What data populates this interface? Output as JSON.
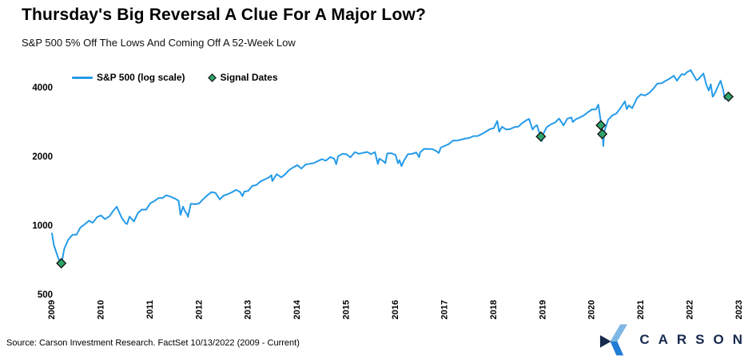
{
  "header": {
    "title": "Thursday's Big Reversal A Clue For A Major Low?",
    "subtitle": "S&P 500 5% Off The Lows And Coming Off A 52-Week Low"
  },
  "footer": {
    "source": "Source: Carson Investment Research. FactSet 10/13/2022 (2009 - Current)",
    "logo_text": "CARSON",
    "logo_colors": {
      "navy": "#17294D",
      "light_blue": "#7EB6E4",
      "mid_blue": "#1F7CD4"
    }
  },
  "chart_data": {
    "type": "line",
    "title": "Thursday's Big Reversal A Clue For A Major Low?",
    "subtitle": "S&P 500 5% Off The Lows And Coming Off A 52-Week Low",
    "grid": false,
    "legend_position": "top-left",
    "x_axis": {
      "ticks": [
        2009,
        2010,
        2011,
        2012,
        2013,
        2014,
        2015,
        2016,
        2017,
        2018,
        2019,
        2020,
        2021,
        2022,
        2023
      ],
      "label_rotation": -90
    },
    "y_axis": {
      "scale": "log",
      "ticks": [
        4000,
        2000,
        1000,
        500
      ],
      "range": [
        500,
        5200
      ]
    },
    "series": [
      {
        "name": "S&P 500 (log scale)",
        "color": "#259BE9",
        "points": [
          [
            2009.0,
            931
          ],
          [
            2009.04,
            826
          ],
          [
            2009.12,
            735
          ],
          [
            2009.19,
            677
          ],
          [
            2009.25,
            798
          ],
          [
            2009.33,
            873
          ],
          [
            2009.42,
            919
          ],
          [
            2009.5,
            919
          ],
          [
            2009.58,
            987
          ],
          [
            2009.67,
            1021
          ],
          [
            2009.75,
            1057
          ],
          [
            2009.83,
            1036
          ],
          [
            2009.92,
            1096
          ],
          [
            2010.0,
            1115
          ],
          [
            2010.08,
            1074
          ],
          [
            2010.17,
            1104
          ],
          [
            2010.25,
            1169
          ],
          [
            2010.32,
            1217
          ],
          [
            2010.42,
            1089
          ],
          [
            2010.5,
            1031
          ],
          [
            2010.53,
            1023
          ],
          [
            2010.58,
            1102
          ],
          [
            2010.67,
            1049
          ],
          [
            2010.75,
            1141
          ],
          [
            2010.83,
            1183
          ],
          [
            2010.92,
            1181
          ],
          [
            2011.0,
            1258
          ],
          [
            2011.08,
            1286
          ],
          [
            2011.17,
            1327
          ],
          [
            2011.25,
            1326
          ],
          [
            2011.33,
            1364
          ],
          [
            2011.42,
            1345
          ],
          [
            2011.5,
            1321
          ],
          [
            2011.58,
            1292
          ],
          [
            2011.62,
            1120
          ],
          [
            2011.67,
            1219
          ],
          [
            2011.71,
            1162
          ],
          [
            2011.75,
            1131
          ],
          [
            2011.77,
            1099
          ],
          [
            2011.83,
            1253
          ],
          [
            2011.92,
            1247
          ],
          [
            2012.0,
            1258
          ],
          [
            2012.08,
            1312
          ],
          [
            2012.17,
            1366
          ],
          [
            2012.25,
            1408
          ],
          [
            2012.33,
            1398
          ],
          [
            2012.42,
            1310
          ],
          [
            2012.5,
            1362
          ],
          [
            2012.58,
            1379
          ],
          [
            2012.67,
            1407
          ],
          [
            2012.75,
            1441
          ],
          [
            2012.83,
            1412
          ],
          [
            2012.88,
            1353
          ],
          [
            2012.92,
            1416
          ],
          [
            2013.0,
            1426
          ],
          [
            2013.08,
            1498
          ],
          [
            2013.17,
            1515
          ],
          [
            2013.25,
            1569
          ],
          [
            2013.33,
            1598
          ],
          [
            2013.42,
            1631
          ],
          [
            2013.47,
            1669
          ],
          [
            2013.49,
            1573
          ],
          [
            2013.58,
            1686
          ],
          [
            2013.67,
            1633
          ],
          [
            2013.75,
            1682
          ],
          [
            2013.83,
            1757
          ],
          [
            2013.92,
            1806
          ],
          [
            2014.0,
            1848
          ],
          [
            2014.08,
            1783
          ],
          [
            2014.17,
            1859
          ],
          [
            2014.25,
            1872
          ],
          [
            2014.33,
            1884
          ],
          [
            2014.42,
            1924
          ],
          [
            2014.5,
            1960
          ],
          [
            2014.58,
            1931
          ],
          [
            2014.67,
            2003
          ],
          [
            2014.75,
            1972
          ],
          [
            2014.79,
            1862
          ],
          [
            2014.83,
            2018
          ],
          [
            2014.92,
            2068
          ],
          [
            2015.0,
            2059
          ],
          [
            2015.08,
            1995
          ],
          [
            2015.17,
            2105
          ],
          [
            2015.25,
            2068
          ],
          [
            2015.33,
            2086
          ],
          [
            2015.42,
            2107
          ],
          [
            2015.5,
            2063
          ],
          [
            2015.58,
            2104
          ],
          [
            2015.64,
            1868
          ],
          [
            2015.67,
            1972
          ],
          [
            2015.75,
            1920
          ],
          [
            2015.79,
            1882
          ],
          [
            2015.83,
            2079
          ],
          [
            2015.92,
            2080
          ],
          [
            2016.0,
            2044
          ],
          [
            2016.05,
            1880
          ],
          [
            2016.08,
            1940
          ],
          [
            2016.12,
            1829
          ],
          [
            2016.17,
            1932
          ],
          [
            2016.25,
            2060
          ],
          [
            2016.33,
            2065
          ],
          [
            2016.42,
            2097
          ],
          [
            2016.48,
            2001
          ],
          [
            2016.5,
            2099
          ],
          [
            2016.58,
            2174
          ],
          [
            2016.67,
            2171
          ],
          [
            2016.75,
            2168
          ],
          [
            2016.83,
            2126
          ],
          [
            2016.88,
            2085
          ],
          [
            2016.92,
            2199
          ],
          [
            2017.0,
            2239
          ],
          [
            2017.08,
            2279
          ],
          [
            2017.17,
            2364
          ],
          [
            2017.25,
            2363
          ],
          [
            2017.33,
            2384
          ],
          [
            2017.42,
            2412
          ],
          [
            2017.5,
            2423
          ],
          [
            2017.58,
            2470
          ],
          [
            2017.67,
            2472
          ],
          [
            2017.75,
            2519
          ],
          [
            2017.83,
            2575
          ],
          [
            2017.92,
            2648
          ],
          [
            2018.0,
            2674
          ],
          [
            2018.07,
            2873
          ],
          [
            2018.11,
            2581
          ],
          [
            2018.17,
            2714
          ],
          [
            2018.25,
            2641
          ],
          [
            2018.33,
            2648
          ],
          [
            2018.42,
            2705
          ],
          [
            2018.5,
            2718
          ],
          [
            2018.58,
            2816
          ],
          [
            2018.67,
            2902
          ],
          [
            2018.72,
            2931
          ],
          [
            2018.79,
            2641
          ],
          [
            2018.83,
            2712
          ],
          [
            2018.88,
            2760
          ],
          [
            2018.98,
            2351
          ],
          [
            2019.0,
            2507
          ],
          [
            2019.08,
            2704
          ],
          [
            2019.17,
            2784
          ],
          [
            2019.25,
            2834
          ],
          [
            2019.33,
            2946
          ],
          [
            2019.42,
            2752
          ],
          [
            2019.5,
            2942
          ],
          [
            2019.58,
            2980
          ],
          [
            2019.61,
            2847
          ],
          [
            2019.67,
            2926
          ],
          [
            2019.75,
            2977
          ],
          [
            2019.83,
            3038
          ],
          [
            2019.92,
            3141
          ],
          [
            2020.0,
            3231
          ],
          [
            2020.08,
            3226
          ],
          [
            2020.13,
            3386
          ],
          [
            2020.17,
            2954
          ],
          [
            2020.2,
            2750
          ],
          [
            2020.22,
            2520
          ],
          [
            2020.23,
            2237
          ],
          [
            2020.25,
            2585
          ],
          [
            2020.33,
            2912
          ],
          [
            2020.42,
            3044
          ],
          [
            2020.5,
            3100
          ],
          [
            2020.58,
            3271
          ],
          [
            2020.67,
            3500
          ],
          [
            2020.71,
            3237
          ],
          [
            2020.75,
            3363
          ],
          [
            2020.82,
            3270
          ],
          [
            2020.92,
            3622
          ],
          [
            2021.0,
            3756
          ],
          [
            2021.08,
            3714
          ],
          [
            2021.17,
            3811
          ],
          [
            2021.25,
            3973
          ],
          [
            2021.33,
            4181
          ],
          [
            2021.42,
            4204
          ],
          [
            2021.5,
            4298
          ],
          [
            2021.58,
            4395
          ],
          [
            2021.67,
            4523
          ],
          [
            2021.73,
            4308
          ],
          [
            2021.83,
            4605
          ],
          [
            2021.88,
            4567
          ],
          [
            2021.95,
            4713
          ],
          [
            2022.0,
            4766
          ],
          [
            2022.01,
            4797
          ],
          [
            2022.08,
            4516
          ],
          [
            2022.13,
            4327
          ],
          [
            2022.17,
            4374
          ],
          [
            2022.27,
            4631
          ],
          [
            2022.33,
            4132
          ],
          [
            2022.38,
            3901
          ],
          [
            2022.42,
            4158
          ],
          [
            2022.46,
            3667
          ],
          [
            2022.5,
            3785
          ],
          [
            2022.58,
            4130
          ],
          [
            2022.62,
            4305
          ],
          [
            2022.67,
            3955
          ],
          [
            2022.71,
            3586
          ],
          [
            2022.74,
            3678
          ],
          [
            2022.77,
            3577
          ],
          [
            2022.78,
            3669
          ]
        ]
      }
    ],
    "signals": {
      "name": "Signal Dates",
      "fill": "#2FA56B",
      "stroke": "#1A1A1A",
      "points": [
        [
          2009.19,
          690
        ],
        [
          2018.96,
          2460
        ],
        [
          2020.18,
          2754
        ],
        [
          2020.21,
          2522
        ],
        [
          2022.78,
          3669
        ]
      ]
    }
  }
}
